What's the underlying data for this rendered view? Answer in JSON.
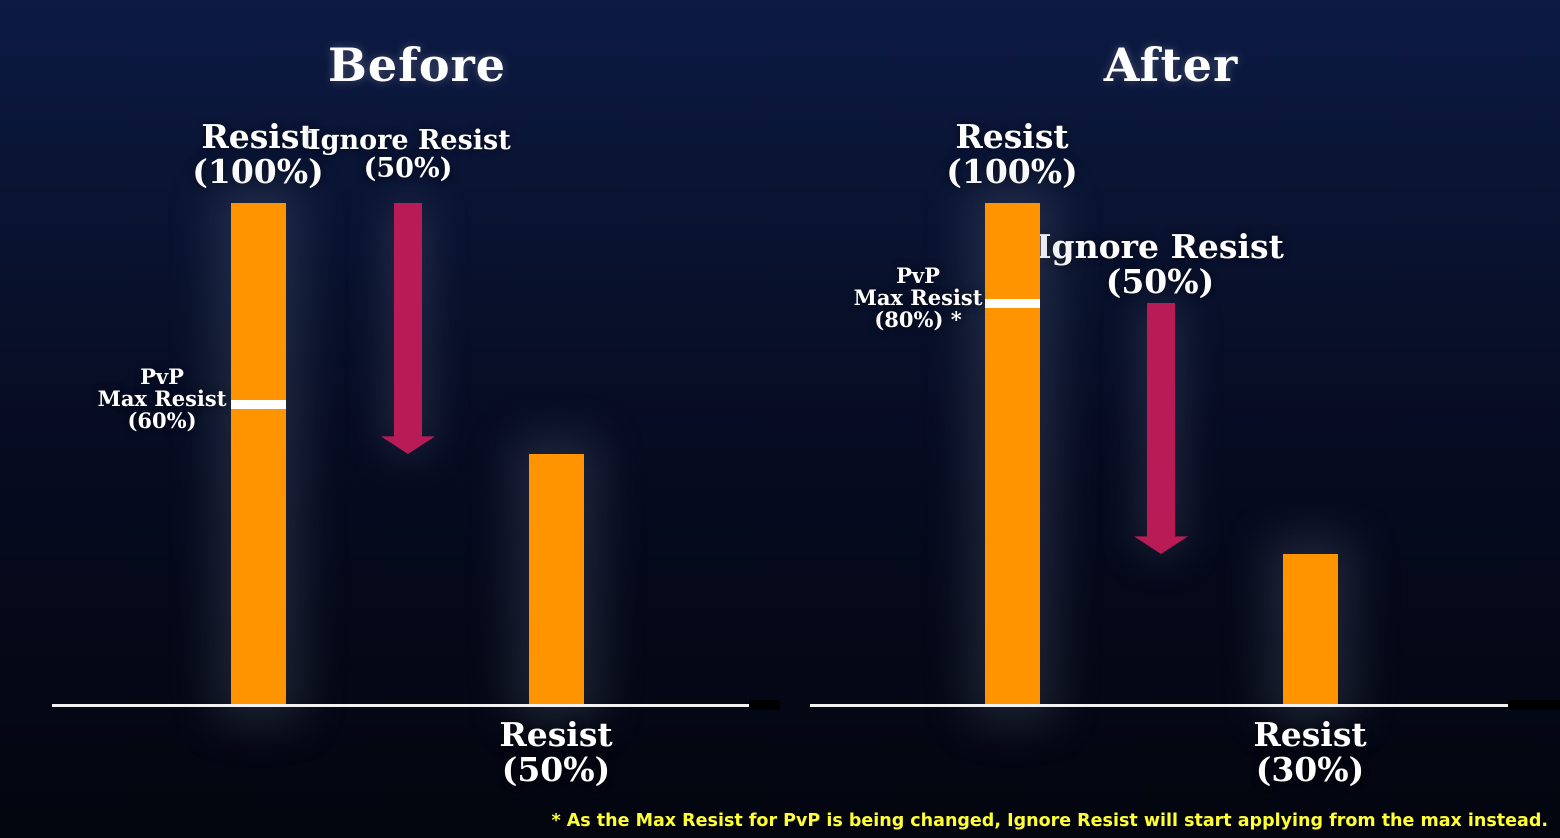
{
  "chart_data": [
    {
      "type": "bar",
      "title": "Before",
      "ylim": [
        0,
        100
      ],
      "grid": false,
      "bars": [
        {
          "label_top": "Resist",
          "label_value": "(100%)",
          "value": 100
        },
        {
          "label_bottom": "Resist",
          "label_value": "(50%)",
          "value": 50
        }
      ],
      "arrow": {
        "label": "Ignore Resist",
        "label_value": "(50%)",
        "from": 100,
        "to": 50
      },
      "marker": {
        "line1": "PvP",
        "line2": "Max Resist",
        "line3": "(60%)",
        "value": 60
      }
    },
    {
      "type": "bar",
      "title": "After",
      "ylim": [
        0,
        100
      ],
      "grid": false,
      "bars": [
        {
          "label_top": "Resist",
          "label_value": "(100%)",
          "value": 100
        },
        {
          "label_bottom": "Resist",
          "label_value": "(30%)",
          "value": 30
        }
      ],
      "arrow": {
        "label": "Ignore Resist",
        "label_value": "(50%)",
        "from": 80,
        "to": 30
      },
      "marker": {
        "line1": "PvP",
        "line2": "Max Resist",
        "line3": "(80%) *",
        "value": 80
      }
    }
  ],
  "footnote": "* As the Max Resist for PvP is being changed, Ignore Resist will start applying from the max instead.",
  "colors": {
    "bar": "#ff9400",
    "arrow": "#b81b55",
    "marker": "#ffffff",
    "axis": "#f2f2f2",
    "footnote": "#ffff33"
  }
}
